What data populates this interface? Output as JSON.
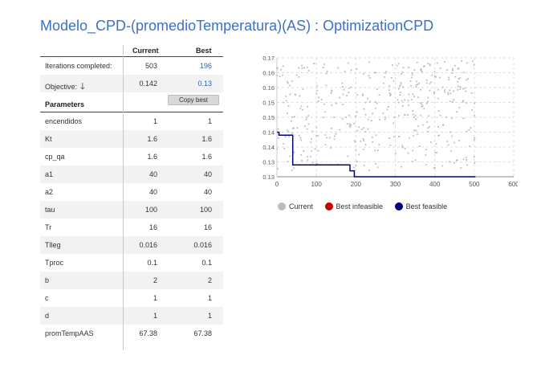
{
  "title": "Modelo_CPD-(promedioTemperatura)(AS) : OptimizationCPD",
  "table": {
    "col_current": "Current",
    "col_best": "Best",
    "iterations": {
      "label": "Iterations completed:",
      "current": "503",
      "best": "196"
    },
    "objective": {
      "label": "Objective:",
      "arrow": "🡓",
      "current": "0.142",
      "best": "0.13"
    },
    "parameters_label": "Parameters",
    "copy_best": "Copy best",
    "params": [
      {
        "name": "encendidos",
        "current": "1",
        "best": "1"
      },
      {
        "name": "Kt",
        "current": "1.6",
        "best": "1.6"
      },
      {
        "name": "cp_qa",
        "current": "1.6",
        "best": "1.6"
      },
      {
        "name": "a1",
        "current": "40",
        "best": "40"
      },
      {
        "name": "a2",
        "current": "40",
        "best": "40"
      },
      {
        "name": "tau",
        "current": "100",
        "best": "100"
      },
      {
        "name": "Tr",
        "current": "16",
        "best": "16"
      },
      {
        "name": "Tlleg",
        "current": "0.016",
        "best": "0.016"
      },
      {
        "name": "Tproc",
        "current": "0.1",
        "best": "0.1"
      },
      {
        "name": "b",
        "current": "2",
        "best": "2"
      },
      {
        "name": "c",
        "current": "1",
        "best": "1"
      },
      {
        "name": "d",
        "current": "1",
        "best": "1"
      },
      {
        "name": "promTempAAS",
        "current": "67.38",
        "best": "67.38"
      }
    ]
  },
  "legend": {
    "current": "Current",
    "best_infeasible": "Best infeasible",
    "best_feasible": "Best feasible"
  },
  "colors": {
    "current": "#bdbdbd",
    "best_infeasible": "#cc0000",
    "best_feasible": "#000080",
    "title": "#3f6fc6"
  },
  "chart_data": {
    "type": "scatter",
    "xlim": [
      0,
      600
    ],
    "ylim": [
      0.13,
      0.17
    ],
    "x_ticks": [
      0,
      100,
      200,
      300,
      400,
      500,
      600
    ],
    "y_ticks": [
      0.13,
      0.135,
      0.14,
      0.145,
      0.15,
      0.155,
      0.16,
      0.165,
      0.17
    ],
    "y_tick_labels": [
      "0.13",
      "0.13",
      "0.14",
      "0.14",
      "0.15",
      "0.15",
      "0.16",
      "0.16",
      "0.17"
    ],
    "grid": true,
    "current_x_range": [
      0,
      503
    ],
    "current_y_range": [
      0.132,
      0.169
    ],
    "best_feasible": [
      [
        0,
        0.145
      ],
      [
        5,
        0.145
      ],
      [
        5,
        0.144
      ],
      [
        40,
        0.144
      ],
      [
        40,
        0.134
      ],
      [
        185,
        0.134
      ],
      [
        185,
        0.132
      ],
      [
        196,
        0.132
      ],
      [
        196,
        0.13
      ],
      [
        503,
        0.13
      ]
    ]
  }
}
